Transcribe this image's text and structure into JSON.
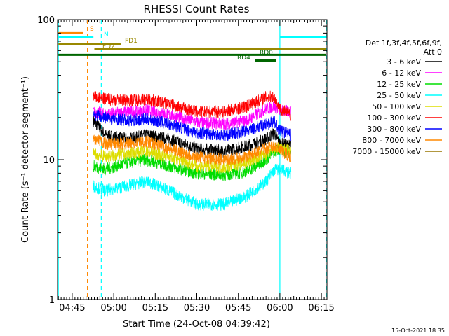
{
  "chart_data": {
    "type": "line",
    "title": "RHESSI Count Rates",
    "xlabel": "Start Time (24-Oct-08 04:39:42)",
    "ylabel": "Count Rate (s⁻¹ detector segment⁻¹)",
    "yscale": "log",
    "ylim": [
      1,
      100
    ],
    "xlim": [
      "04:39:42",
      "06:17:00"
    ],
    "x_tick_labels": [
      "04:45",
      "05:00",
      "05:15",
      "05:30",
      "05:45",
      "06:00",
      "06:15"
    ],
    "y_tick_labels": [
      "1",
      "10",
      "100"
    ],
    "footer_date": "15-Oct-2021 18:35",
    "legend": {
      "placement": "right",
      "header": [
        "Det 1f,3f,4f,5f,6f,9f,",
        "Att 0"
      ]
    },
    "series": [
      {
        "name": "3 - 6 keV",
        "color": "#000000",
        "points": [
          [
            "04:52:40",
            19
          ],
          [
            "04:57:00",
            15
          ],
          [
            "05:05:00",
            14
          ],
          [
            "05:12:00",
            15
          ],
          [
            "05:20:00",
            14
          ],
          [
            "05:30:00",
            12
          ],
          [
            "05:40:00",
            11.5
          ],
          [
            "05:48:00",
            12.5
          ],
          [
            "05:55:00",
            14
          ],
          [
            "05:58:00",
            15.5
          ],
          [
            "06:00:00",
            13
          ],
          [
            "06:04:00",
            12.5
          ]
        ]
      },
      {
        "name": "6 - 12 keV",
        "color": "#ff00ff",
        "points": [
          [
            "04:52:40",
            22
          ],
          [
            "04:57:00",
            21
          ],
          [
            "05:05:00",
            22
          ],
          [
            "05:12:00",
            22.5
          ],
          [
            "05:20:00",
            21
          ],
          [
            "05:30:00",
            18.5
          ],
          [
            "05:40:00",
            18
          ],
          [
            "05:48:00",
            19
          ],
          [
            "05:55:00",
            23
          ],
          [
            "05:58:00",
            24
          ],
          [
            "06:00:00",
            22.5
          ],
          [
            "06:04:00",
            22
          ]
        ]
      },
      {
        "name": "12 - 25 keV",
        "color": "#00dd00",
        "points": [
          [
            "04:52:40",
            9
          ],
          [
            "04:57:00",
            8.5
          ],
          [
            "05:05:00",
            9.5
          ],
          [
            "05:12:00",
            10
          ],
          [
            "05:20:00",
            9
          ],
          [
            "05:30:00",
            8
          ],
          [
            "05:40:00",
            7.8
          ],
          [
            "05:48:00",
            8.2
          ],
          [
            "05:55:00",
            10
          ],
          [
            "05:58:00",
            11.5
          ],
          [
            "06:00:00",
            12
          ],
          [
            "06:04:00",
            11
          ]
        ]
      },
      {
        "name": "25 - 50 keV",
        "color": "#00ffff",
        "points": [
          [
            "04:52:40",
            6.5
          ],
          [
            "04:57:00",
            6
          ],
          [
            "05:05:00",
            6.5
          ],
          [
            "05:12:00",
            7
          ],
          [
            "05:20:00",
            6
          ],
          [
            "05:30:00",
            4.8
          ],
          [
            "05:40:00",
            4.8
          ],
          [
            "05:48:00",
            5.5
          ],
          [
            "05:55:00",
            7
          ],
          [
            "05:58:00",
            8.5
          ],
          [
            "06:00:00",
            8.5
          ],
          [
            "06:04:00",
            8
          ]
        ]
      },
      {
        "name": "50 - 100 keV",
        "color": "#dddd00",
        "points": [
          [
            "04:52:40",
            11
          ],
          [
            "04:57:00",
            10.5
          ],
          [
            "05:05:00",
            11
          ],
          [
            "05:12:00",
            11.5
          ],
          [
            "05:20:00",
            10.5
          ],
          [
            "05:30:00",
            9
          ],
          [
            "05:40:00",
            8.8
          ],
          [
            "05:48:00",
            9.5
          ],
          [
            "05:55:00",
            11
          ],
          [
            "05:58:00",
            12
          ],
          [
            "06:00:00",
            12
          ],
          [
            "06:04:00",
            11.5
          ]
        ]
      },
      {
        "name": "100 - 300 keV",
        "color": "#ff0000",
        "points": [
          [
            "04:52:40",
            28
          ],
          [
            "04:57:00",
            27
          ],
          [
            "05:05:00",
            26.5
          ],
          [
            "05:12:00",
            27
          ],
          [
            "05:20:00",
            25
          ],
          [
            "05:30:00",
            22
          ],
          [
            "05:40:00",
            22
          ],
          [
            "05:48:00",
            24
          ],
          [
            "05:55:00",
            28
          ],
          [
            "05:58:00",
            28
          ],
          [
            "06:00:00",
            23
          ],
          [
            "06:04:00",
            21
          ]
        ]
      },
      {
        "name": "300 - 800 keV",
        "color": "#0000ff",
        "points": [
          [
            "04:52:40",
            21
          ],
          [
            "04:57:00",
            20
          ],
          [
            "05:05:00",
            19
          ],
          [
            "05:12:00",
            19.5
          ],
          [
            "05:20:00",
            18
          ],
          [
            "05:30:00",
            15.5
          ],
          [
            "05:40:00",
            15
          ],
          [
            "05:48:00",
            16
          ],
          [
            "05:55:00",
            18
          ],
          [
            "05:58:00",
            18.5
          ],
          [
            "06:00:00",
            16
          ],
          [
            "06:04:00",
            15
          ]
        ]
      },
      {
        "name": "800 - 7000 keV",
        "color": "#ff8800",
        "points": [
          [
            "04:52:40",
            14
          ],
          [
            "04:57:00",
            13
          ],
          [
            "05:05:00",
            13
          ],
          [
            "05:12:00",
            13.5
          ],
          [
            "05:20:00",
            12
          ],
          [
            "05:30:00",
            10.5
          ],
          [
            "05:40:00",
            10
          ],
          [
            "05:48:00",
            10.5
          ],
          [
            "05:55:00",
            12
          ],
          [
            "05:58:00",
            12.5
          ],
          [
            "06:00:00",
            11.5
          ],
          [
            "06:04:00",
            10.5
          ]
        ]
      },
      {
        "name": "7000 - 15000 keV",
        "color": "#997700",
        "points": []
      }
    ],
    "annotations": [
      {
        "label": "S",
        "color": "#ff8800",
        "y": 80,
        "x_start": "04:40:00",
        "x_end": "04:49:00"
      },
      {
        "label": "N",
        "color": "#00ffff",
        "y": 75,
        "x_start": "04:40:00",
        "x_end": "04:52:40"
      },
      {
        "label": "N",
        "color": "#00ffff",
        "y": 75,
        "x_start": "06:00:00",
        "x_end": "06:16:50"
      },
      {
        "label": "FD1",
        "color": "#998800",
        "y": 67,
        "x_start": "04:40:00",
        "x_end": "05:02:30"
      },
      {
        "label": "FD2",
        "color": "#998800",
        "y": 62,
        "x_start": "04:53:00",
        "x_end": "06:17:00"
      },
      {
        "label": "RD0",
        "color": "#006600",
        "y": 56,
        "x_start": "04:40:00",
        "x_end": "06:17:00"
      },
      {
        "label": "RD4",
        "color": "#006600",
        "y": 51,
        "x_start": "05:51:00",
        "x_end": "05:58:40"
      }
    ],
    "vertical_markers": [
      {
        "x": "04:40:00",
        "color": "#00ffff",
        "style": "solid"
      },
      {
        "x": "04:50:30",
        "color": "#ff8800",
        "style": "dashed"
      },
      {
        "x": "04:55:30",
        "color": "#00ffff",
        "style": "dashed"
      },
      {
        "x": "06:00:00",
        "color": "#00ffff",
        "style": "solid"
      },
      {
        "x": "06:16:40",
        "color": "#ff8800",
        "style": "dashed"
      },
      {
        "x": "06:16:55",
        "color": "#00ffff",
        "style": "dashed"
      }
    ]
  }
}
